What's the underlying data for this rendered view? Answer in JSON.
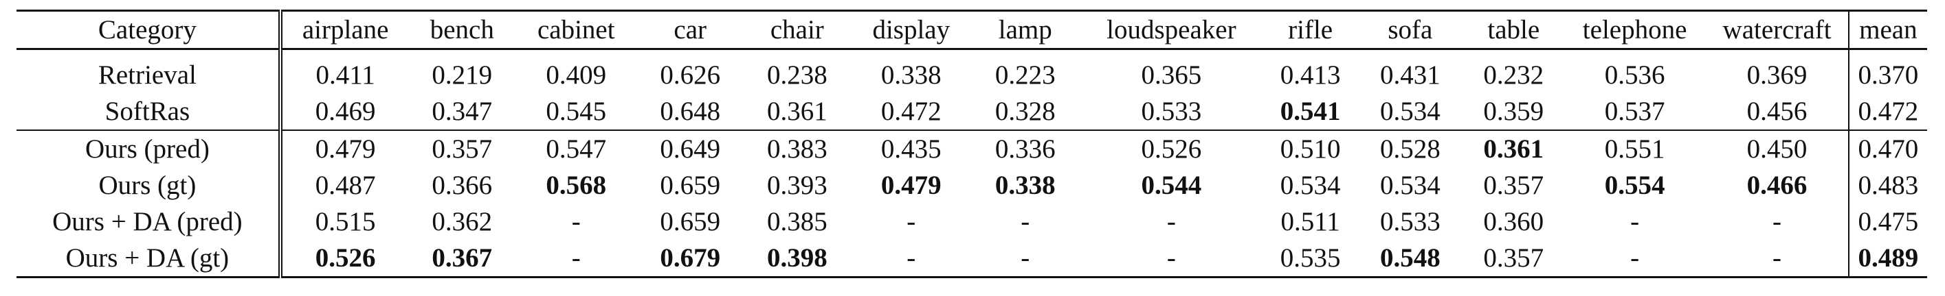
{
  "table": {
    "header": [
      "Category",
      "airplane",
      "bench",
      "cabinet",
      "car",
      "chair",
      "display",
      "lamp",
      "loudspeaker",
      "rifle",
      "sofa",
      "table",
      "telephone",
      "watercraft",
      "mean"
    ],
    "rows": [
      {
        "label": "Retrieval",
        "values": [
          "0.411",
          "0.219",
          "0.409",
          "0.626",
          "0.238",
          "0.338",
          "0.223",
          "0.365",
          "0.413",
          "0.431",
          "0.232",
          "0.536",
          "0.369",
          "0.370"
        ],
        "bold": []
      },
      {
        "label": "SoftRas",
        "values": [
          "0.469",
          "0.347",
          "0.545",
          "0.648",
          "0.361",
          "0.472",
          "0.328",
          "0.533",
          "0.541",
          "0.534",
          "0.359",
          "0.537",
          "0.456",
          "0.472"
        ],
        "bold": [
          8
        ]
      },
      {
        "label": "Ours (pred)",
        "values": [
          "0.479",
          "0.357",
          "0.547",
          "0.649",
          "0.383",
          "0.435",
          "0.336",
          "0.526",
          "0.510",
          "0.528",
          "0.361",
          "0.551",
          "0.450",
          "0.470"
        ],
        "bold": [
          10
        ]
      },
      {
        "label": "Ours (gt)",
        "values": [
          "0.487",
          "0.366",
          "0.568",
          "0.659",
          "0.393",
          "0.479",
          "0.338",
          "0.544",
          "0.534",
          "0.534",
          "0.357",
          "0.554",
          "0.466",
          "0.483"
        ],
        "bold": [
          2,
          5,
          6,
          7,
          11,
          12
        ]
      },
      {
        "label": "Ours + DA (pred)",
        "values": [
          "0.515",
          "0.362",
          "-",
          "0.659",
          "0.385",
          "-",
          "-",
          "-",
          "0.511",
          "0.533",
          "0.360",
          "-",
          "-",
          "0.475"
        ],
        "bold": []
      },
      {
        "label": "Ours + DA (gt)",
        "values": [
          "0.526",
          "0.367",
          "-",
          "0.679",
          "0.398",
          "-",
          "-",
          "-",
          "0.535",
          "0.548",
          "0.357",
          "-",
          "-",
          "0.489"
        ],
        "bold": [
          0,
          1,
          3,
          4,
          9,
          13
        ]
      }
    ]
  }
}
